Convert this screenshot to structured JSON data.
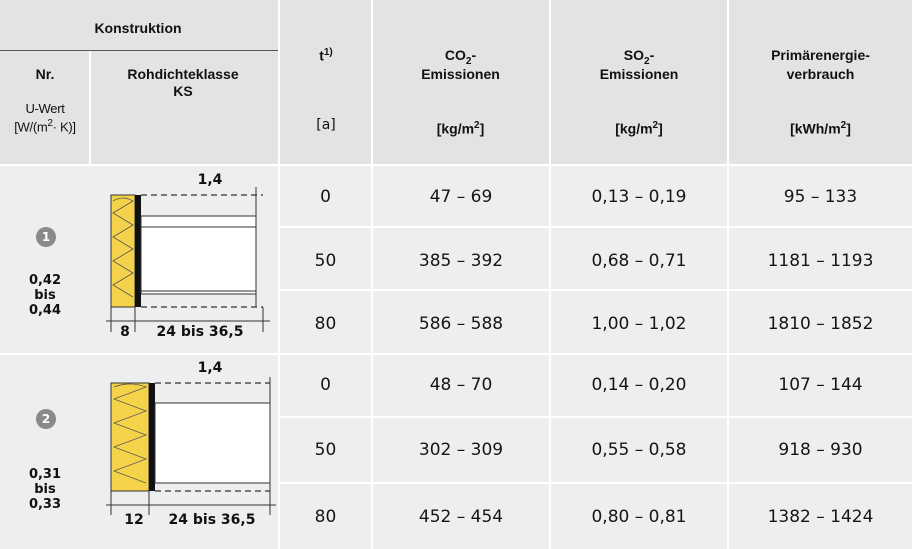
{
  "header": {
    "konstruktion": "Konstruktion",
    "nr": "Nr.",
    "rohdichte_line1": "Rohdichteklasse",
    "rohdichte_line2": "KS",
    "uwert_line1": "U-Wert",
    "uwert_line2a": "[W/(m",
    "uwert_sup": "2",
    "uwert_line2b": "· K)]",
    "t_label": "t",
    "t_sup": "1)",
    "t_unit": "[a]",
    "co2_a": "CO",
    "co2_sub": "2",
    "co2_b": "-",
    "co2_line2": "Emissionen",
    "co2_unit_a": "[kg/m",
    "co2_unit_sup": "2",
    "co2_unit_b": "]",
    "so2_a": "SO",
    "so2_sub": "2",
    "so2_b": "-",
    "so2_line2": "Emissionen",
    "so2_unit_a": "[kg/m",
    "so2_unit_sup": "2",
    "so2_unit_b": "]",
    "pe_line1": "Primärenergie-",
    "pe_line2": "verbrauch",
    "pe_unit_a": "[kWh/m",
    "pe_unit_sup": "2",
    "pe_unit_b": "]"
  },
  "constructions": [
    {
      "badge": "1",
      "u_from": "0,42",
      "u_bis": "bis",
      "u_to": "0,44",
      "dim_top": "1,4",
      "dim_insul": "8",
      "dim_wall": "24 bis 36,5",
      "rows": [
        {
          "t": "0",
          "co2": "47 – 69",
          "so2": "0,13 – 0,19",
          "pe": "95 – 133"
        },
        {
          "t": "50",
          "co2": "385 – 392",
          "so2": "0,68 – 0,71",
          "pe": "1181 – 1193"
        },
        {
          "t": "80",
          "co2": "586 – 588",
          "so2": "1,00 – 1,02",
          "pe": "1810 – 1852"
        }
      ]
    },
    {
      "badge": "2",
      "u_from": "0,31",
      "u_bis": "bis",
      "u_to": "0,33",
      "dim_top": "1,4",
      "dim_insul": "12",
      "dim_wall": "24 bis 36,5",
      "rows": [
        {
          "t": "0",
          "co2": "48 – 70",
          "so2": "0,14 – 0,20",
          "pe": "107 – 144"
        },
        {
          "t": "50",
          "co2": "302 – 309",
          "so2": "0,55 – 0,58",
          "pe": "918 – 930"
        },
        {
          "t": "80",
          "co2": "452 – 454",
          "so2": "0,80 – 0,81",
          "pe": "1382 – 1424"
        }
      ]
    }
  ],
  "colors": {
    "header_bg": "#e1e3e5",
    "body_bg": "#edeeef",
    "insulation": "#f4d34a",
    "badge": "#8a8a8a"
  }
}
